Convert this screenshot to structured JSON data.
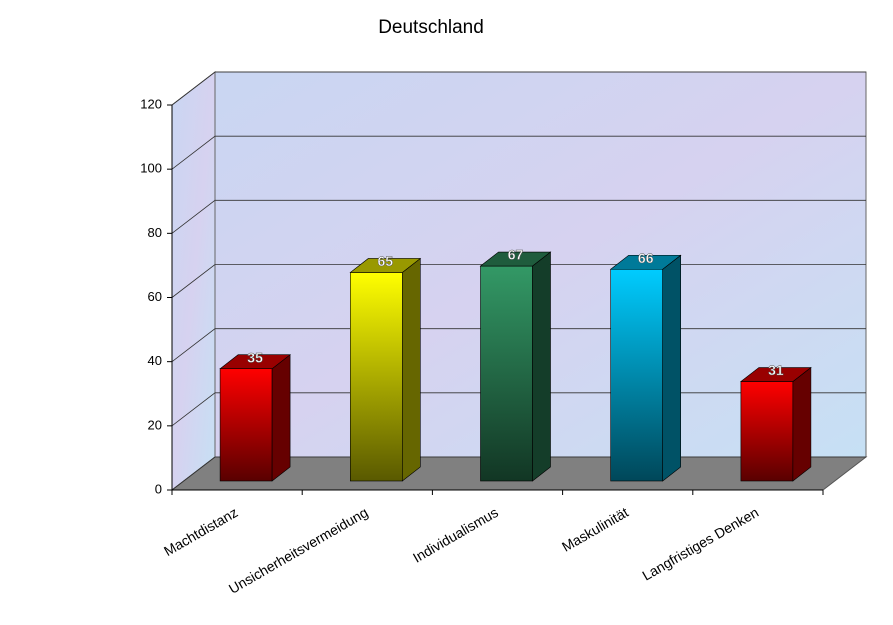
{
  "chart_data": {
    "type": "bar3d",
    "title": "Deutschland",
    "categories": [
      "Machtdistanz",
      "Unsicherheitsvermeidung",
      "Individualismus",
      "Maskulinität",
      "Langfristiges Denken"
    ],
    "values": [
      35,
      65,
      67,
      66,
      31
    ],
    "colors": [
      "#ff0000",
      "#ffff00",
      "#339966",
      "#00ccff",
      "#ff0000"
    ],
    "ylim": [
      0,
      120
    ],
    "yticks": [
      0,
      20,
      40,
      60,
      80,
      100,
      120
    ],
    "grid": true
  }
}
